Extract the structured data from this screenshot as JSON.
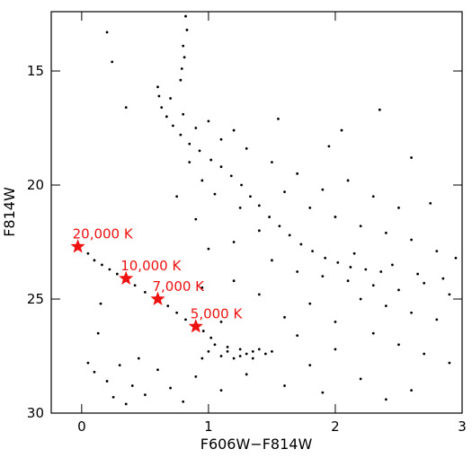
{
  "chart_data": {
    "type": "scatter",
    "x_label": "F606W−F814W",
    "y_label": "F814W",
    "xlim": [
      -0.24,
      3
    ],
    "ylim": [
      30,
      12.4
    ],
    "xticks": [
      0,
      1,
      2,
      3
    ],
    "yticks": [
      15,
      20,
      25,
      30
    ],
    "series": [
      {
        "color": "#000000",
        "x": [
          0.82,
          0.83,
          0.8,
          0.81,
          0.79,
          0.78,
          0.2,
          0.24,
          0.35,
          0.6,
          0.61,
          0.63,
          0.67,
          0.72,
          0.78,
          0.85,
          0.93,
          1.02,
          1.1,
          1.18,
          1.26,
          1.33,
          1.4,
          1.48,
          1.56,
          1.64,
          1.73,
          1.82,
          1.92,
          2.02,
          2.12,
          2.24,
          2.36,
          0.05,
          0.1,
          0.16,
          0.22,
          0.28,
          0.42,
          0.5,
          0.68,
          0.75,
          0.82,
          0.96,
          1.02,
          0.13,
          0.15,
          1.05,
          1.15,
          1.25,
          1.35,
          1.45,
          1.1,
          1.2,
          1.3,
          1.4,
          1.0,
          1.5,
          0.95,
          1.15,
          1.25,
          1.35,
          0.1,
          0.2,
          0.3,
          0.4,
          0.5,
          0.6,
          0.7,
          0.8,
          0.25,
          0.45,
          0.9,
          1.1,
          1.3,
          1.6,
          0.05,
          0.35,
          0.7,
          0.8,
          0.9,
          1.0,
          1.1,
          1.2,
          0.85,
          0.95,
          0.75,
          1.05,
          1.25,
          0.9,
          1.3,
          1.5,
          1.7,
          1.9,
          2.1,
          2.3,
          2.5,
          1.6,
          1.8,
          2.0,
          2.2,
          2.4,
          2.6,
          2.8,
          2.95,
          1.4,
          1.2,
          1.0,
          1.5,
          1.7,
          1.9,
          2.1,
          2.3,
          2.5,
          2.7,
          2.9,
          2.2,
          2.4,
          2.6,
          2.8,
          1.8,
          1.6,
          2.0,
          2.3,
          2.5,
          2.7,
          2.9,
          2.0,
          1.8,
          2.2,
          2.6,
          2.4,
          1.9,
          1.7,
          1.4,
          1.2,
          2.35,
          2.05,
          1.95,
          2.6,
          2.75,
          2.15,
          2.45,
          2.65,
          2.85,
          1.55,
          0.95,
          1.1
        ],
        "values": [
          12.6,
          13.2,
          13.9,
          14.4,
          14.9,
          15.4,
          13.3,
          14.6,
          16.6,
          15.7,
          16.1,
          16.6,
          17.0,
          17.4,
          17.8,
          18.2,
          18.5,
          18.9,
          19.2,
          19.6,
          20.0,
          20.5,
          20.9,
          21.4,
          21.8,
          22.2,
          22.6,
          22.9,
          23.2,
          23.4,
          23.6,
          23.7,
          23.8,
          23.0,
          23.3,
          23.5,
          23.7,
          23.9,
          24.4,
          24.7,
          25.3,
          25.6,
          25.9,
          26.4,
          26.7,
          26.5,
          25.2,
          27.0,
          27.1,
          27.2,
          27.3,
          27.4,
          27.5,
          27.6,
          27.4,
          27.2,
          27.3,
          27.3,
          27.6,
          27.3,
          27.5,
          27.6,
          28.2,
          28.6,
          27.9,
          28.8,
          29.2,
          28.1,
          28.9,
          29.5,
          29.3,
          27.6,
          28.4,
          29.0,
          28.3,
          28.8,
          27.8,
          29.6,
          16.2,
          16.9,
          17.5,
          17.2,
          18.0,
          17.6,
          19.0,
          19.8,
          20.5,
          20.4,
          21.0,
          21.5,
          18.4,
          19.0,
          19.5,
          20.2,
          19.8,
          20.5,
          21.0,
          20.3,
          21.0,
          21.4,
          21.8,
          22.1,
          22.4,
          22.9,
          23.2,
          22.0,
          22.5,
          22.8,
          23.3,
          23.8,
          24.0,
          24.2,
          24.4,
          24.6,
          24.3,
          24.8,
          25.0,
          25.3,
          25.6,
          25.9,
          25.2,
          25.8,
          26.0,
          26.5,
          27.0,
          27.4,
          27.8,
          27.2,
          27.9,
          28.5,
          29.0,
          29.4,
          29.1,
          26.6,
          24.8,
          24.2,
          16.7,
          17.6,
          18.3,
          18.8,
          20.8,
          23.0,
          23.5,
          23.9,
          24.1,
          17.1,
          24.5,
          26.0
        ]
      }
    ],
    "markers": {
      "color": "#ee1111",
      "points": [
        {
          "label": "20,000 K",
          "x": -0.03,
          "y": 22.7
        },
        {
          "label": "10,000 K",
          "x": 0.35,
          "y": 24.1
        },
        {
          "label": "7,000 K",
          "x": 0.6,
          "y": 25.0
        },
        {
          "label": "5,000 K",
          "x": 0.9,
          "y": 26.2
        }
      ]
    }
  }
}
